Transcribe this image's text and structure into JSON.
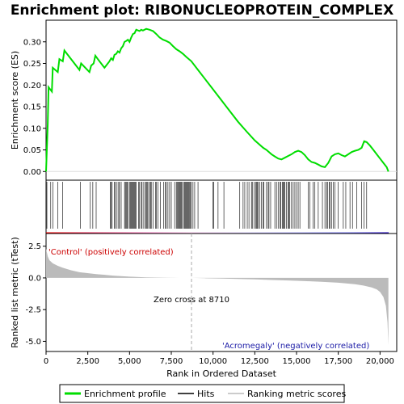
{
  "chart_data": {
    "type": "line",
    "title": "Enrichment plot: RIBONUCLEOPROTEIN_COMPLEX",
    "xlabel": "Rank in Ordered Dataset",
    "top_panel": {
      "ylabel": "Enrichment score (ES)",
      "xlim": [
        0,
        21000
      ],
      "ylim": [
        -0.02,
        0.35
      ],
      "yticks": [
        "0.00",
        "0.05",
        "0.10",
        "0.15",
        "0.20",
        "0.25",
        "0.30"
      ],
      "ytick_values": [
        0.0,
        0.05,
        0.1,
        0.15,
        0.2,
        0.25,
        0.3
      ],
      "series": [
        {
          "name": "Enrichment profile",
          "color": "#00dd00",
          "x": [
            0,
            100,
            150,
            350,
            400,
            700,
            800,
            1000,
            1100,
            2000,
            2100,
            2600,
            2700,
            2850,
            2950,
            3100,
            3500,
            3800,
            3900,
            4000,
            4100,
            4200,
            4300,
            4400,
            4500,
            4600,
            4700,
            4800,
            4900,
            5000,
            5100,
            5200,
            5300,
            5400,
            5600,
            5700,
            5800,
            6000,
            6200,
            6400,
            6600,
            6800,
            7000,
            7200,
            7400,
            7600,
            7800,
            8000,
            8200,
            8400,
            8700,
            9000,
            9500,
            10000,
            10500,
            11000,
            11500,
            12000,
            12500,
            13000,
            13200,
            13500,
            13700,
            13900,
            14100,
            14300,
            14500,
            14700,
            14900,
            15100,
            15300,
            15500,
            15700,
            15900,
            16100,
            16300,
            16500,
            16700,
            16900,
            17100,
            17300,
            17500,
            17700,
            17900,
            18100,
            18300,
            18500,
            18700,
            18900,
            19050,
            19200,
            19400,
            19600,
            19800,
            20000,
            20200,
            20400,
            20500
          ],
          "y": [
            0.0,
            0.11,
            0.195,
            0.185,
            0.24,
            0.23,
            0.26,
            0.255,
            0.28,
            0.235,
            0.25,
            0.23,
            0.245,
            0.25,
            0.268,
            0.26,
            0.24,
            0.255,
            0.262,
            0.258,
            0.27,
            0.272,
            0.278,
            0.275,
            0.285,
            0.29,
            0.3,
            0.302,
            0.305,
            0.3,
            0.31,
            0.318,
            0.32,
            0.328,
            0.325,
            0.328,
            0.326,
            0.33,
            0.328,
            0.325,
            0.318,
            0.31,
            0.305,
            0.302,
            0.298,
            0.29,
            0.283,
            0.278,
            0.272,
            0.265,
            0.255,
            0.24,
            0.215,
            0.19,
            0.165,
            0.14,
            0.115,
            0.093,
            0.072,
            0.055,
            0.05,
            0.04,
            0.035,
            0.03,
            0.028,
            0.032,
            0.036,
            0.04,
            0.045,
            0.048,
            0.045,
            0.038,
            0.028,
            0.022,
            0.02,
            0.016,
            0.012,
            0.01,
            0.02,
            0.035,
            0.04,
            0.042,
            0.038,
            0.035,
            0.04,
            0.045,
            0.048,
            0.05,
            0.055,
            0.07,
            0.068,
            0.06,
            0.05,
            0.04,
            0.03,
            0.02,
            0.01,
            0.0
          ]
        }
      ]
    },
    "hits_panel": {
      "series_name": "Hits",
      "hit_ranks": [
        50,
        280,
        420,
        700,
        1000,
        2050,
        2650,
        2800,
        3000,
        3850,
        3900,
        3960,
        4100,
        4150,
        4250,
        4350,
        4400,
        4500,
        4700,
        4750,
        4800,
        4850,
        4900,
        5000,
        5050,
        5100,
        5150,
        5200,
        5250,
        5300,
        5350,
        5400,
        5550,
        5600,
        5700,
        5750,
        5850,
        5950,
        6000,
        6050,
        6100,
        6200,
        6250,
        6300,
        6400,
        6550,
        6600,
        6700,
        6850,
        7050,
        7150,
        7200,
        7300,
        7400,
        7500,
        7700,
        7800,
        7850,
        7900,
        7950,
        8000,
        8050,
        8100,
        8150,
        8250,
        8300,
        8350,
        8400,
        8450,
        8500,
        8550,
        8600,
        8650,
        8700,
        8800,
        8900,
        9100,
        10000,
        10050,
        10300,
        10650,
        11600,
        11800,
        11900,
        12050,
        12150,
        12300,
        12350,
        12450,
        12550,
        12600,
        12650,
        12700,
        12800,
        12900,
        13000,
        13050,
        13200,
        13300,
        13350,
        13450,
        13700,
        13800,
        13900,
        14000,
        14050,
        14150,
        14200,
        14250,
        14300,
        14400,
        14500,
        14550,
        14600,
        14700,
        14800,
        14900,
        15000,
        15100,
        15200,
        15700,
        15800,
        16000,
        16100,
        16300,
        16550,
        16700,
        16800,
        16850,
        16950,
        17000,
        17100,
        17200,
        17300,
        17500,
        17800,
        17950,
        18200,
        18350,
        18600,
        18900,
        19050,
        19200
      ],
      "bar_colors": [
        "#ff0000",
        "#ff99cc",
        "#ffccff",
        "#ccccff",
        "#6666ff",
        "#0000cc"
      ]
    },
    "metric_panel": {
      "ylabel": "Ranked list metric (tTest)",
      "series_name": "Ranking metric scores",
      "xlim": [
        0,
        21000
      ],
      "ylim": [
        -5.8,
        3.5
      ],
      "yticks": [
        "2.5",
        "0.0",
        "-2.5",
        "-5.0"
      ],
      "ytick_values": [
        2.5,
        0.0,
        -2.5,
        -5.0
      ],
      "x": [
        0,
        100,
        200,
        400,
        700,
        1000,
        1500,
        2000,
        3000,
        4000,
        5000,
        6000,
        7000,
        8000,
        8710,
        9500,
        10500,
        11500,
        12500,
        13500,
        14500,
        15500,
        16500,
        17500,
        18500,
        19000,
        19500,
        19800,
        20000,
        20200,
        20350,
        20450,
        20500
      ],
      "y": [
        2.3,
        1.7,
        1.4,
        1.15,
        0.95,
        0.8,
        0.6,
        0.45,
        0.3,
        0.18,
        0.1,
        0.05,
        0.02,
        0.005,
        0.0,
        -0.02,
        -0.05,
        -0.08,
        -0.12,
        -0.16,
        -0.2,
        -0.25,
        -0.3,
        -0.38,
        -0.5,
        -0.6,
        -0.75,
        -0.9,
        -1.1,
        -1.5,
        -2.2,
        -3.5,
        -5.3
      ],
      "zero_cross_rank": 8710,
      "annotations": {
        "positive": "'Control' (positively correlated)",
        "negative": "'Acromegaly' (negatively correlated)",
        "zero_cross": "Zero cross at 8710"
      }
    },
    "xticks": [
      "0",
      "2,500",
      "5,000",
      "7,500",
      "10,000",
      "12,500",
      "15,000",
      "17,500",
      "20,000"
    ],
    "xtick_values": [
      0,
      2500,
      5000,
      7500,
      10000,
      12500,
      15000,
      17500,
      20000
    ],
    "legend": {
      "placement": "bottom",
      "entries": [
        "Enrichment profile",
        "Hits",
        "Ranking metric scores"
      ],
      "colors": [
        "#00dd00",
        "#000000",
        "#bbbbbb"
      ]
    }
  }
}
